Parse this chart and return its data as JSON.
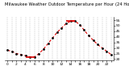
{
  "title": "Milwaukee Weather Outdoor Temperature per Hour (24 Hours)",
  "hours": [
    0,
    1,
    2,
    3,
    4,
    5,
    6,
    7,
    8,
    9,
    10,
    11,
    12,
    13,
    14,
    15,
    16,
    17,
    18,
    19,
    20,
    21,
    22,
    23
  ],
  "temps": [
    28,
    27,
    25,
    24,
    23,
    22,
    22,
    25,
    29,
    34,
    39,
    44,
    48,
    52,
    54,
    54,
    51,
    46,
    41,
    37,
    33,
    30,
    27,
    24
  ],
  "line_color": "#dd0000",
  "marker_color": "#000000",
  "background_color": "#ffffff",
  "grid_color": "#999999",
  "ylim": [
    19,
    58
  ],
  "xlim": [
    -0.5,
    23.5
  ],
  "title_fontsize": 3.8,
  "tick_fontsize": 3.2,
  "min_val": 22,
  "max_val": 54,
  "min_hour_start": 4,
  "min_hour_end": 6,
  "max_hour_start": 13,
  "max_hour_end": 15,
  "yticks": [
    20,
    25,
    30,
    35,
    40,
    45,
    50,
    55
  ]
}
